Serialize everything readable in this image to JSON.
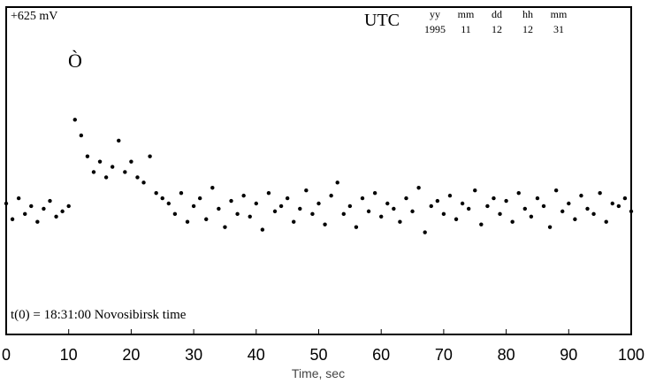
{
  "chart_data": {
    "type": "scatter",
    "top_label": "+625 mV",
    "utc_title": "UTC",
    "utc_fields": [
      {
        "label": "yy",
        "value": "1995"
      },
      {
        "label": "mm",
        "value": "11"
      },
      {
        "label": "dd",
        "value": "12"
      },
      {
        "label": "hh",
        "value": "12"
      },
      {
        "label": "mm",
        "value": "31"
      }
    ],
    "event_marker": "Ò",
    "annotation": "t(0) = 18:31:00 Novosibirsk time",
    "x_label": "Time, sec",
    "color": "#000000",
    "xlim": [
      0,
      100
    ],
    "xticks": [
      0,
      10,
      20,
      30,
      40,
      50,
      60,
      70,
      80,
      90,
      100
    ],
    "ylim": [
      0,
      625
    ],
    "x": [
      0,
      1,
      2,
      3,
      4,
      5,
      6,
      7,
      8,
      9,
      10,
      11,
      12,
      13,
      14,
      15,
      16,
      17,
      18,
      19,
      20,
      21,
      22,
      23,
      24,
      25,
      26,
      27,
      28,
      29,
      30,
      31,
      32,
      33,
      34,
      35,
      36,
      37,
      38,
      39,
      40,
      41,
      42,
      43,
      44,
      45,
      46,
      47,
      48,
      49,
      50,
      51,
      52,
      53,
      54,
      55,
      56,
      57,
      58,
      59,
      60,
      61,
      62,
      63,
      64,
      65,
      66,
      67,
      68,
      69,
      70,
      71,
      72,
      73,
      74,
      75,
      76,
      77,
      78,
      79,
      80,
      81,
      82,
      83,
      84,
      85,
      86,
      87,
      88,
      89,
      90,
      91,
      92,
      93,
      94,
      95,
      96,
      97,
      98,
      99,
      100
    ],
    "values": [
      250,
      220,
      260,
      230,
      245,
      215,
      240,
      255,
      225,
      235,
      245,
      410,
      380,
      340,
      310,
      330,
      300,
      320,
      370,
      310,
      330,
      300,
      290,
      340,
      270,
      260,
      250,
      230,
      270,
      215,
      245,
      260,
      220,
      280,
      240,
      205,
      255,
      230,
      265,
      225,
      250,
      200,
      270,
      235,
      245,
      260,
      215,
      240,
      275,
      230,
      250,
      210,
      265,
      290,
      230,
      245,
      205,
      260,
      235,
      270,
      225,
      250,
      240,
      215,
      260,
      235,
      280,
      195,
      245,
      255,
      230,
      265,
      220,
      250,
      240,
      275,
      210,
      245,
      260,
      230,
      255,
      215,
      270,
      240,
      225,
      260,
      245,
      205,
      275,
      235,
      250,
      220,
      265,
      240,
      230,
      270,
      215,
      250,
      245,
      260,
      235
    ]
  }
}
